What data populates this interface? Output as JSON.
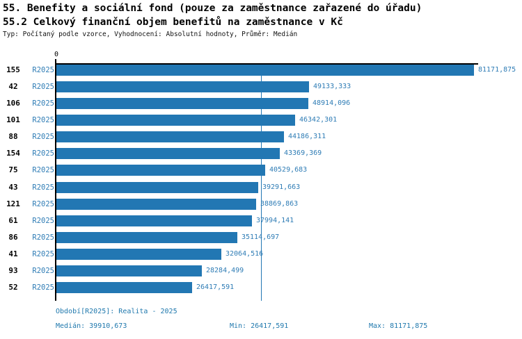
{
  "header": {
    "title_line1": "55. Benefity a sociální fond (pouze za zaměstnance zařazené do úřadu)",
    "title_line2": "55.2 Celkový finanční objem benefitů na zaměstnance v Kč",
    "subtitle": "Typ: Počítaný podle vzorce, Vyhodnocení: Absolutní hodnoty, Průměr: Medián"
  },
  "chart_data": {
    "type": "bar",
    "orientation": "horizontal",
    "title": "55.2 Celkový finanční objem benefitů na zaměstnance v Kč",
    "x_axis": {
      "origin_tick_label": "0",
      "xlim": [
        0,
        82000
      ],
      "grid": false
    },
    "series_label": "R2025",
    "categories": [
      "155",
      "42",
      "106",
      "101",
      "88",
      "154",
      "75",
      "43",
      "121",
      "61",
      "86",
      "41",
      "93",
      "52"
    ],
    "values": [
      81171.875,
      49133.333,
      48914.096,
      46342.301,
      44186.311,
      43369.369,
      40529.683,
      39291.663,
      38869.863,
      37994.141,
      35114.697,
      32064.516,
      28284.499,
      26417.591
    ],
    "value_labels": [
      "81171,875",
      "49133,333",
      "48914,096",
      "46342,301",
      "44186,311",
      "43369,369",
      "40529,683",
      "39291,663",
      "38869,863",
      "37994,141",
      "35114,697",
      "32064,516",
      "28284,499",
      "26417,591"
    ],
    "median_line": {
      "value": 39910.673
    },
    "colors": {
      "bar": "#2277b3",
      "value_text": "#2e7cb5",
      "series_text": "#2e7cb5",
      "footer_text": "#1f78ad",
      "axis": "#000000",
      "median_line": "#2277b3"
    }
  },
  "footer": {
    "period_label": "Období[R2025]: Realita - 2025",
    "median_label": "Medián: 39910,673",
    "min_label": "Min: 26417,591",
    "max_label": "Max: 81171,875"
  }
}
